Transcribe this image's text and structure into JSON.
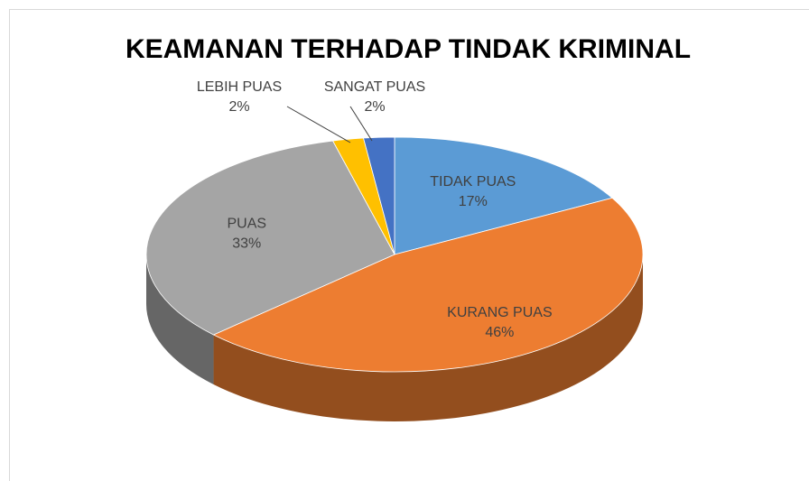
{
  "chart_data": {
    "type": "pie",
    "title": "KEAMANAN TERHADAP TINDAK KRIMINAL",
    "categories": [
      "TIDAK PUAS",
      "KURANG PUAS",
      "PUAS",
      "LEBIH PUAS",
      "SANGAT PUAS"
    ],
    "values": [
      17,
      46,
      33,
      2,
      2
    ],
    "value_labels": [
      "17%",
      "46%",
      "33%",
      "2%",
      "2%"
    ],
    "colors": [
      "#5b9bd5",
      "#ed7d31",
      "#a5a5a5",
      "#ffc000",
      "#4472c4"
    ]
  }
}
